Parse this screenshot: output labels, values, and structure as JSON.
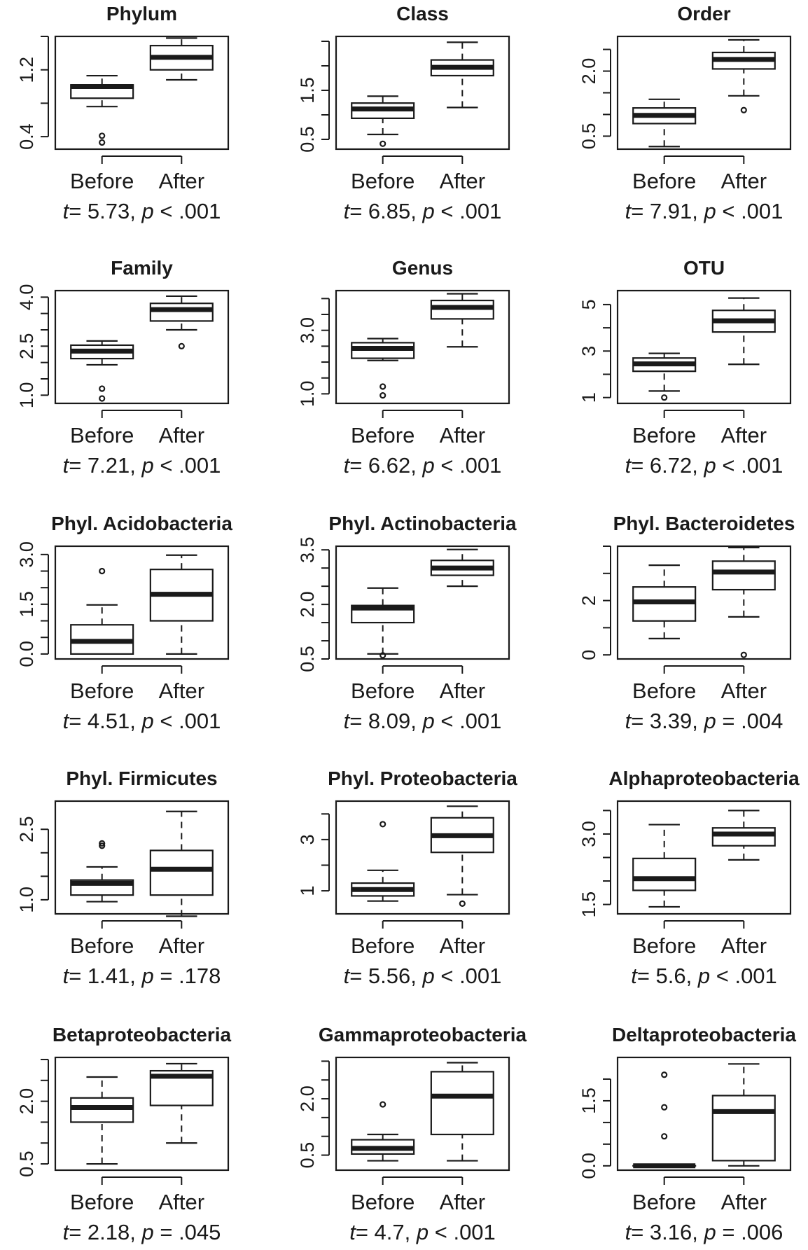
{
  "chart_data": [
    {
      "type": "box",
      "title": "Phylum",
      "categories": [
        "Before",
        "After"
      ],
      "ylim": [
        0.25,
        1.6
      ],
      "yticks": [
        0.4,
        0.8,
        1.2,
        1.6
      ],
      "ytick_labels": [
        "0.4",
        "",
        "1.2",
        ""
      ],
      "boxes": [
        {
          "min": 0.76,
          "q1": 0.86,
          "median": 1.0,
          "q3": 1.02,
          "max": 1.13,
          "outliers": [
            0.41,
            0.33
          ]
        },
        {
          "min": 1.08,
          "q1": 1.2,
          "median": 1.35,
          "q3": 1.49,
          "max": 1.58,
          "outliers": []
        }
      ],
      "stat": {
        "t_label": "t",
        "t_value": "= 5.73, ",
        "p_label": "p",
        "p_value": " < .001"
      }
    },
    {
      "type": "box",
      "title": "Class",
      "categories": [
        "Before",
        "After"
      ],
      "ylim": [
        0.3,
        2.6
      ],
      "yticks": [
        0.5,
        1.0,
        1.5,
        2.0,
        2.5
      ],
      "ytick_labels": [
        "0.5",
        "",
        "1.5",
        "",
        ""
      ],
      "boxes": [
        {
          "min": 0.6,
          "q1": 0.93,
          "median": 1.12,
          "q3": 1.24,
          "max": 1.38,
          "outliers": [
            0.41
          ]
        },
        {
          "min": 1.15,
          "q1": 1.8,
          "median": 1.97,
          "q3": 2.12,
          "max": 2.48,
          "outliers": []
        }
      ],
      "stat": {
        "t_label": "t",
        "t_value": "= 6.85, ",
        "p_label": "p",
        "p_value": " < .001"
      }
    },
    {
      "type": "box",
      "title": "Order",
      "categories": [
        "Before",
        "After"
      ],
      "ylim": [
        0.2,
        2.8
      ],
      "yticks": [
        0.5,
        1.0,
        1.5,
        2.0,
        2.5
      ],
      "ytick_labels": [
        "0.5",
        "",
        "",
        "2.0",
        ""
      ],
      "boxes": [
        {
          "min": 0.26,
          "q1": 0.79,
          "median": 0.98,
          "q3": 1.15,
          "max": 1.35,
          "outliers": []
        },
        {
          "min": 1.43,
          "q1": 2.05,
          "median": 2.27,
          "q3": 2.43,
          "max": 2.72,
          "outliers": [
            1.1
          ]
        }
      ],
      "stat": {
        "t_label": "t",
        "t_value": "= 7.91, ",
        "p_label": "p",
        "p_value": " < .001"
      }
    },
    {
      "type": "box",
      "title": "Family",
      "categories": [
        "Before",
        "After"
      ],
      "ylim": [
        0.75,
        4.2
      ],
      "yticks": [
        1.0,
        1.5,
        2.0,
        2.5,
        3.0,
        3.5,
        4.0
      ],
      "ytick_labels": [
        "1.0",
        "",
        "",
        "2.5",
        "",
        "",
        "4.0"
      ],
      "boxes": [
        {
          "min": 1.93,
          "q1": 2.12,
          "median": 2.35,
          "q3": 2.53,
          "max": 2.66,
          "outliers": [
            1.2,
            0.9
          ]
        },
        {
          "min": 3.0,
          "q1": 3.27,
          "median": 3.62,
          "q3": 3.81,
          "max": 4.03,
          "outliers": [
            2.5
          ]
        }
      ],
      "stat": {
        "t_label": "t",
        "t_value": "= 7.21, ",
        "p_label": "p",
        "p_value": " < .001"
      }
    },
    {
      "type": "box",
      "title": "Genus",
      "categories": [
        "Before",
        "After"
      ],
      "ylim": [
        0.7,
        4.25
      ],
      "yticks": [
        1.0,
        1.5,
        2.0,
        2.5,
        3.0,
        3.5,
        4.0
      ],
      "ytick_labels": [
        "1.0",
        "",
        "",
        "",
        "3.0",
        "",
        ""
      ],
      "boxes": [
        {
          "min": 2.05,
          "q1": 2.12,
          "median": 2.43,
          "q3": 2.61,
          "max": 2.74,
          "outliers": [
            1.23,
            0.95
          ]
        },
        {
          "min": 2.48,
          "q1": 3.36,
          "median": 3.72,
          "q3": 3.94,
          "max": 4.15,
          "outliers": []
        }
      ],
      "stat": {
        "t_label": "t",
        "t_value": "= 6.62, ",
        "p_label": "p",
        "p_value": " < .001"
      }
    },
    {
      "type": "box",
      "title": "OTU",
      "categories": [
        "Before",
        "After"
      ],
      "ylim": [
        0.75,
        5.6
      ],
      "yticks": [
        1,
        2,
        3,
        4,
        5
      ],
      "ytick_labels": [
        "1",
        "",
        "3",
        "",
        "5"
      ],
      "boxes": [
        {
          "min": 1.28,
          "q1": 2.13,
          "median": 2.45,
          "q3": 2.7,
          "max": 2.9,
          "outliers": [
            1.0
          ]
        },
        {
          "min": 2.43,
          "q1": 3.82,
          "median": 4.3,
          "q3": 4.75,
          "max": 5.28,
          "outliers": []
        }
      ],
      "stat": {
        "t_label": "t",
        "t_value": "= 6.72, ",
        "p_label": "p",
        "p_value": " < .001"
      }
    },
    {
      "type": "box",
      "title": "Phyl. Acidobacteria",
      "categories": [
        "Before",
        "After"
      ],
      "ylim": [
        -0.15,
        3.25
      ],
      "yticks": [
        0.0,
        0.5,
        1.0,
        1.5,
        2.0,
        2.5,
        3.0
      ],
      "ytick_labels": [
        "0.0",
        "",
        "",
        "1.5",
        "",
        "",
        "3.0"
      ],
      "boxes": [
        {
          "min": 0.0,
          "q1": 0.0,
          "median": 0.38,
          "q3": 0.88,
          "max": 1.48,
          "outliers": [
            2.5
          ]
        },
        {
          "min": 0.0,
          "q1": 1.0,
          "median": 1.8,
          "q3": 2.55,
          "max": 2.98,
          "outliers": []
        }
      ],
      "stat": {
        "t_label": "t",
        "t_value": "= 4.51, ",
        "p_label": "p",
        "p_value": " < .001"
      }
    },
    {
      "type": "box",
      "title": "Phyl. Actinobacteria",
      "categories": [
        "Before",
        "After"
      ],
      "ylim": [
        0.5,
        3.6
      ],
      "yticks": [
        0.5,
        1.0,
        1.5,
        2.0,
        2.5,
        3.0,
        3.5
      ],
      "ytick_labels": [
        "0.5",
        "",
        "",
        "2.0",
        "",
        "",
        "3.5"
      ],
      "boxes": [
        {
          "min": 0.64,
          "q1": 1.5,
          "median": 1.9,
          "q3": 1.97,
          "max": 2.45,
          "outliers": [
            0.6
          ]
        },
        {
          "min": 2.5,
          "q1": 2.8,
          "median": 3.0,
          "q3": 3.21,
          "max": 3.51,
          "outliers": []
        }
      ],
      "stat": {
        "t_label": "t",
        "t_value": "= 8.09, ",
        "p_label": "p",
        "p_value": " < .001"
      }
    },
    {
      "type": "box",
      "title": "Phyl. Bacteroidetes",
      "categories": [
        "Before",
        "After"
      ],
      "ylim": [
        -0.15,
        4.0
      ],
      "yticks": [
        0,
        1,
        2,
        3,
        4
      ],
      "ytick_labels": [
        "0",
        "",
        "2",
        "",
        ""
      ],
      "boxes": [
        {
          "min": 0.6,
          "q1": 1.25,
          "median": 1.95,
          "q3": 2.5,
          "max": 3.3,
          "outliers": []
        },
        {
          "min": 1.4,
          "q1": 2.4,
          "median": 3.05,
          "q3": 3.45,
          "max": 3.95,
          "outliers": [
            0.0
          ]
        }
      ],
      "stat": {
        "t_label": "t",
        "t_value": "= 3.39, ",
        "p_label": "p",
        "p_value": " = .004"
      }
    },
    {
      "type": "box",
      "title": "Phyl. Firmicutes",
      "categories": [
        "Before",
        "After"
      ],
      "ylim": [
        0.7,
        3.1
      ],
      "yticks": [
        1.0,
        1.5,
        2.0,
        2.5
      ],
      "ytick_labels": [
        "1.0",
        "",
        "",
        "2.5"
      ],
      "boxes": [
        {
          "min": 0.96,
          "q1": 1.1,
          "median": 1.35,
          "q3": 1.42,
          "max": 1.7,
          "outliers": [
            2.2,
            2.15
          ]
        },
        {
          "min": 0.65,
          "q1": 1.1,
          "median": 1.65,
          "q3": 2.05,
          "max": 2.88,
          "outliers": []
        }
      ],
      "stat": {
        "t_label": "t",
        "t_value": "= 1.41, ",
        "p_label": "p",
        "p_value": " = .178"
      }
    },
    {
      "type": "box",
      "title": "Phyl. Proteobacteria",
      "categories": [
        "Before",
        "After"
      ],
      "ylim": [
        0.1,
        4.5
      ],
      "yticks": [
        1,
        2,
        3,
        4
      ],
      "ytick_labels": [
        "1",
        "",
        "3",
        ""
      ],
      "boxes": [
        {
          "min": 0.6,
          "q1": 0.8,
          "median": 1.05,
          "q3": 1.3,
          "max": 1.8,
          "outliers": [
            3.6
          ]
        },
        {
          "min": 0.85,
          "q1": 2.5,
          "median": 3.15,
          "q3": 3.85,
          "max": 4.3,
          "outliers": [
            0.5
          ]
        }
      ],
      "stat": {
        "t_label": "t",
        "t_value": "= 5.56, ",
        "p_label": "p",
        "p_value": " < .001"
      }
    },
    {
      "type": "box",
      "title": "Alphaproteobacteria",
      "categories": [
        "Before",
        "After"
      ],
      "ylim": [
        1.3,
        3.7
      ],
      "yticks": [
        1.5,
        2.0,
        2.5,
        3.0,
        3.5
      ],
      "ytick_labels": [
        "1.5",
        "",
        "",
        "3.0",
        ""
      ],
      "boxes": [
        {
          "min": 1.45,
          "q1": 1.8,
          "median": 2.05,
          "q3": 2.48,
          "max": 3.2,
          "outliers": []
        },
        {
          "min": 2.45,
          "q1": 2.75,
          "median": 3.0,
          "q3": 3.13,
          "max": 3.5,
          "outliers": []
        }
      ],
      "stat": {
        "t_label": "t",
        "t_value": "= 5.6, ",
        "p_label": "p",
        "p_value": " < .001"
      }
    },
    {
      "type": "box",
      "title": "Betaproteobacteria",
      "categories": [
        "Before",
        "After"
      ],
      "ylim": [
        0.35,
        3.05
      ],
      "yticks": [
        0.5,
        1.0,
        1.5,
        2.0,
        2.5,
        3.0
      ],
      "ytick_labels": [
        "0.5",
        "",
        "",
        "2.0",
        "",
        ""
      ],
      "boxes": [
        {
          "min": 0.5,
          "q1": 1.5,
          "median": 1.85,
          "q3": 2.08,
          "max": 2.58,
          "outliers": []
        },
        {
          "min": 1.0,
          "q1": 1.9,
          "median": 2.6,
          "q3": 2.73,
          "max": 2.9,
          "outliers": []
        }
      ],
      "stat": {
        "t_label": "t",
        "t_value": "= 2.18, ",
        "p_label": "p",
        "p_value": " = .045"
      }
    },
    {
      "type": "box",
      "title": "Gammaproteobacteria",
      "categories": [
        "Before",
        "After"
      ],
      "ylim": [
        0.1,
        3.1
      ],
      "yticks": [
        0.5,
        1.0,
        1.5,
        2.0,
        2.5,
        3.0
      ],
      "ytick_labels": [
        "0.5",
        "",
        "",
        "2.0",
        "",
        ""
      ],
      "boxes": [
        {
          "min": 0.35,
          "q1": 0.53,
          "median": 0.68,
          "q3": 0.91,
          "max": 1.05,
          "outliers": [
            1.85
          ]
        },
        {
          "min": 0.35,
          "q1": 1.05,
          "median": 2.07,
          "q3": 2.72,
          "max": 2.96,
          "outliers": []
        }
      ],
      "stat": {
        "t_label": "t",
        "t_value": "= 4.7, ",
        "p_label": "p",
        "p_value": " < .001"
      }
    },
    {
      "type": "box",
      "title": "Deltaproteobacteria",
      "categories": [
        "Before",
        "After"
      ],
      "ylim": [
        -0.1,
        2.5
      ],
      "yticks": [
        0.0,
        0.5,
        1.0,
        1.5,
        2.0
      ],
      "ytick_labels": [
        "0.0",
        "",
        "",
        "1.5",
        ""
      ],
      "boxes": [
        {
          "min": 0.0,
          "q1": 0.0,
          "median": 0.0,
          "q3": 0.0,
          "max": 0.0,
          "outliers": [
            2.1,
            1.35,
            0.68
          ]
        },
        {
          "min": 0.0,
          "q1": 0.12,
          "median": 1.25,
          "q3": 1.62,
          "max": 2.35,
          "outliers": []
        }
      ],
      "stat": {
        "t_label": "t",
        "t_value": "= 3.16, ",
        "p_label": "p",
        "p_value": " = .006"
      }
    }
  ]
}
